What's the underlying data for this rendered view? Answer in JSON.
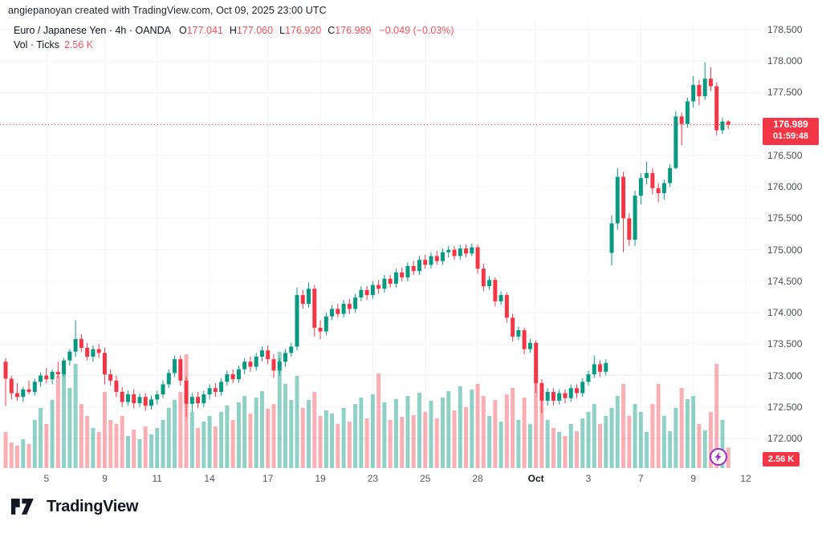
{
  "attribution": "angiepanoyan created with TradingView.com, Oct 09, 2025 23:00 UTC",
  "legend": {
    "symbol_line": "Euro / Japanese Yen · 4h · OANDA",
    "ohlc": [
      {
        "k": "O",
        "v": "177.041"
      },
      {
        "k": "H",
        "v": "177.060"
      },
      {
        "k": "L",
        "v": "176.920"
      },
      {
        "k": "C",
        "v": "176.989"
      }
    ],
    "change": "−0.049 (−0.03%)",
    "vol_label": "Vol · Ticks",
    "vol_value": "2.56 K"
  },
  "badges": {
    "price": "176.989",
    "countdown": "01:59:48",
    "volume": "2.56 K"
  },
  "footer": {
    "brand": "TradingView"
  },
  "icons": {
    "flash": "lightning-icon",
    "logo": "tradingview-logo-icon"
  },
  "colors": {
    "up": "#089981",
    "down": "#f23645",
    "text_down": "#f7525f",
    "volume_up": "rgba(8,153,129,0.45)",
    "volume_down": "rgba(242,54,69,0.40)",
    "badge_bg": "#f23645",
    "grid": "#f1f3f6",
    "axis_text": "#4a4e59",
    "dark_text": "#131722",
    "flash_purple": "#a02cc8",
    "price_line": "#f23645"
  },
  "chart_data": {
    "type": "candlestick",
    "title": "Euro / Japanese Yen",
    "interval": "4h",
    "exchange": "OANDA",
    "volume_indicator": "Vol · Ticks",
    "last": {
      "o": 177.041,
      "h": 177.06,
      "l": 176.92,
      "c": 176.989,
      "change": -0.049,
      "change_pct": -0.03,
      "volume_k": 2.56,
      "countdown": "01:59:48"
    },
    "current_price": 176.989,
    "price_axis_range": [
      172.0,
      178.5
    ],
    "price_tick_step": 0.5,
    "hidden_price_label": 177.0,
    "grid": true,
    "volume_unit": "K",
    "time_ticks": [
      {
        "text": "5",
        "index": 7
      },
      {
        "text": "9",
        "index": 17
      },
      {
        "text": "11",
        "index": 26
      },
      {
        "text": "14",
        "index": 35
      },
      {
        "text": "17",
        "index": 45
      },
      {
        "text": "19",
        "index": 54
      },
      {
        "text": "23",
        "index": 63
      },
      {
        "text": "25",
        "index": 72
      },
      {
        "text": "28",
        "index": 81
      },
      {
        "text": "Oct",
        "index": 91,
        "bold": true
      },
      {
        "text": "3",
        "index": 100
      },
      {
        "text": "7",
        "index": 109
      },
      {
        "text": "9",
        "index": 118
      },
      {
        "text": "12",
        "index": 127
      }
    ],
    "candles": [
      [
        173.22,
        173.28,
        172.52,
        172.95,
        4.5
      ],
      [
        172.95,
        173.0,
        172.62,
        172.72,
        3.2
      ],
      [
        172.72,
        172.88,
        172.6,
        172.66,
        2.8
      ],
      [
        172.66,
        172.82,
        172.58,
        172.78,
        3.6
      ],
      [
        172.78,
        172.92,
        172.7,
        172.74,
        3.0
      ],
      [
        172.74,
        172.95,
        172.68,
        172.9,
        6.0
      ],
      [
        172.9,
        173.05,
        172.82,
        173.0,
        7.5
      ],
      [
        173.0,
        173.12,
        172.88,
        172.94,
        5.5
      ],
      [
        172.94,
        173.1,
        172.86,
        173.06,
        8.5
      ],
      [
        173.06,
        173.22,
        172.96,
        173.02,
        11.5
      ],
      [
        173.02,
        173.28,
        172.98,
        173.24,
        12.0
      ],
      [
        173.24,
        173.42,
        173.16,
        173.38,
        10.0
      ],
      [
        173.38,
        173.88,
        173.3,
        173.58,
        13.0
      ],
      [
        173.58,
        173.66,
        173.38,
        173.44,
        8.0
      ],
      [
        173.44,
        173.52,
        173.24,
        173.3,
        6.5
      ],
      [
        173.3,
        173.48,
        173.22,
        173.42,
        5.0
      ],
      [
        173.42,
        173.5,
        173.28,
        173.36,
        4.5
      ],
      [
        173.36,
        173.44,
        172.86,
        173.02,
        9.5
      ],
      [
        173.02,
        173.1,
        172.84,
        172.92,
        6.0
      ],
      [
        172.92,
        173.0,
        172.66,
        172.74,
        5.5
      ],
      [
        172.74,
        172.82,
        172.5,
        172.58,
        6.5
      ],
      [
        172.58,
        172.76,
        172.52,
        172.7,
        4.0
      ],
      [
        172.7,
        172.78,
        172.48,
        172.56,
        4.8
      ],
      [
        172.56,
        172.72,
        172.5,
        172.66,
        3.6
      ],
      [
        172.66,
        172.72,
        172.44,
        172.52,
        5.2
      ],
      [
        172.52,
        172.68,
        172.46,
        172.62,
        4.2
      ],
      [
        172.62,
        172.76,
        172.54,
        172.7,
        5.0
      ],
      [
        172.7,
        172.92,
        172.64,
        172.86,
        6.0
      ],
      [
        172.86,
        173.1,
        172.8,
        173.04,
        7.5
      ],
      [
        173.04,
        173.32,
        172.98,
        173.26,
        8.5
      ],
      [
        173.26,
        173.32,
        172.84,
        172.92,
        9.5
      ],
      [
        172.92,
        172.98,
        172.34,
        172.55,
        14.2
      ],
      [
        172.55,
        172.72,
        172.42,
        172.66,
        7.0
      ],
      [
        172.66,
        172.74,
        172.48,
        172.56,
        5.0
      ],
      [
        172.56,
        172.76,
        172.5,
        172.7,
        5.8
      ],
      [
        172.7,
        172.86,
        172.62,
        172.8,
        6.5
      ],
      [
        172.8,
        172.88,
        172.66,
        172.74,
        5.2
      ],
      [
        172.74,
        172.96,
        172.68,
        172.9,
        7.0
      ],
      [
        172.9,
        173.08,
        172.84,
        173.02,
        7.8
      ],
      [
        173.02,
        173.1,
        172.88,
        172.94,
        6.0
      ],
      [
        172.94,
        173.16,
        172.88,
        173.1,
        8.2
      ],
      [
        173.1,
        173.28,
        173.02,
        173.22,
        9.0
      ],
      [
        173.22,
        173.3,
        173.06,
        173.14,
        6.8
      ],
      [
        173.14,
        173.36,
        173.08,
        173.3,
        8.8
      ],
      [
        173.3,
        173.46,
        173.22,
        173.4,
        9.6
      ],
      [
        173.4,
        173.48,
        173.18,
        173.26,
        7.4
      ],
      [
        173.26,
        173.34,
        172.96,
        173.08,
        8.0
      ],
      [
        173.08,
        173.28,
        173.0,
        173.22,
        14.5
      ],
      [
        173.22,
        173.42,
        173.14,
        173.36,
        10.5
      ],
      [
        173.36,
        173.52,
        173.3,
        173.46,
        8.5
      ],
      [
        173.46,
        174.4,
        173.4,
        174.28,
        11.5
      ],
      [
        174.28,
        174.36,
        174.06,
        174.14,
        7.5
      ],
      [
        174.14,
        174.48,
        174.08,
        174.38,
        8.5
      ],
      [
        174.38,
        174.44,
        173.62,
        173.76,
        9.5
      ],
      [
        173.76,
        173.88,
        173.58,
        173.7,
        6.5
      ],
      [
        173.7,
        174.0,
        173.64,
        173.94,
        7.2
      ],
      [
        173.94,
        174.12,
        173.88,
        174.06,
        6.8
      ],
      [
        174.06,
        174.14,
        173.92,
        173.98,
        5.5
      ],
      [
        173.98,
        174.2,
        173.92,
        174.14,
        7.5
      ],
      [
        174.14,
        174.22,
        173.98,
        174.06,
        5.8
      ],
      [
        174.06,
        174.3,
        174.0,
        174.24,
        8.0
      ],
      [
        174.24,
        174.42,
        174.18,
        174.36,
        8.8
      ],
      [
        174.36,
        174.42,
        174.2,
        174.28,
        6.2
      ],
      [
        174.28,
        174.5,
        174.22,
        174.44,
        9.2
      ],
      [
        174.44,
        174.52,
        174.3,
        174.38,
        11.8
      ],
      [
        174.38,
        174.6,
        174.32,
        174.54,
        8.2
      ],
      [
        174.54,
        174.6,
        174.4,
        174.46,
        6.0
      ],
      [
        174.46,
        174.7,
        174.4,
        174.64,
        8.6
      ],
      [
        174.64,
        174.72,
        174.5,
        174.56,
        6.4
      ],
      [
        174.56,
        174.8,
        174.5,
        174.74,
        9.0
      ],
      [
        174.74,
        174.82,
        174.6,
        174.66,
        6.6
      ],
      [
        174.66,
        174.9,
        174.6,
        174.84,
        9.4
      ],
      [
        174.84,
        174.92,
        174.7,
        174.76,
        7.0
      ],
      [
        174.76,
        174.96,
        174.7,
        174.9,
        8.4
      ],
      [
        174.9,
        174.98,
        174.76,
        174.82,
        6.2
      ],
      [
        174.82,
        175.02,
        174.76,
        174.96,
        8.8
      ],
      [
        174.96,
        175.06,
        174.88,
        175.0,
        9.6
      ],
      [
        175.0,
        175.06,
        174.84,
        174.9,
        7.2
      ],
      [
        174.9,
        175.08,
        174.84,
        175.02,
        10.2
      ],
      [
        175.02,
        175.08,
        174.88,
        174.94,
        7.6
      ],
      [
        174.94,
        175.1,
        174.9,
        175.04,
        9.8
      ],
      [
        175.04,
        175.08,
        174.62,
        174.7,
        10.5
      ],
      [
        174.7,
        174.78,
        174.34,
        174.42,
        9.0
      ],
      [
        174.42,
        174.58,
        174.36,
        174.52,
        6.5
      ],
      [
        174.52,
        174.56,
        174.1,
        174.18,
        8.5
      ],
      [
        174.18,
        174.34,
        174.12,
        174.28,
        5.8
      ],
      [
        174.28,
        174.32,
        173.84,
        173.92,
        9.2
      ],
      [
        173.92,
        173.98,
        173.54,
        173.62,
        10.0
      ],
      [
        173.62,
        173.78,
        173.56,
        173.72,
        6.0
      ],
      [
        173.72,
        173.76,
        173.34,
        173.42,
        8.8
      ],
      [
        173.42,
        173.58,
        173.36,
        173.52,
        5.5
      ],
      [
        173.52,
        173.56,
        172.72,
        172.88,
        12.5
      ],
      [
        172.88,
        172.94,
        172.4,
        172.6,
        9.5
      ],
      [
        172.6,
        172.8,
        172.52,
        172.74,
        6.0
      ],
      [
        172.74,
        172.8,
        172.52,
        172.6,
        5.0
      ],
      [
        172.6,
        172.78,
        172.54,
        172.72,
        4.5
      ],
      [
        172.72,
        172.78,
        172.56,
        172.64,
        4.0
      ],
      [
        172.64,
        172.86,
        172.58,
        172.8,
        5.5
      ],
      [
        172.8,
        172.86,
        172.64,
        172.72,
        4.6
      ],
      [
        172.72,
        172.96,
        172.66,
        172.9,
        6.2
      ],
      [
        172.9,
        173.08,
        172.84,
        173.02,
        7.0
      ],
      [
        173.02,
        173.32,
        172.96,
        173.18,
        8.0
      ],
      [
        173.18,
        173.24,
        172.98,
        173.06,
        5.5
      ],
      [
        173.06,
        173.26,
        173.0,
        173.2,
        6.5
      ],
      [
        174.95,
        175.55,
        174.75,
        175.42,
        7.5
      ],
      [
        175.42,
        176.3,
        175.32,
        176.16,
        9.0
      ],
      [
        176.16,
        176.24,
        174.96,
        175.5,
        10.5
      ],
      [
        175.5,
        175.58,
        175.06,
        175.16,
        6.5
      ],
      [
        175.16,
        175.94,
        175.06,
        175.86,
        8.0
      ],
      [
        175.86,
        176.22,
        175.72,
        176.14,
        7.0
      ],
      [
        176.14,
        176.4,
        176.04,
        176.22,
        4.5
      ],
      [
        176.22,
        176.3,
        175.88,
        175.98,
        8.0
      ],
      [
        175.98,
        176.06,
        175.76,
        175.9,
        10.5
      ],
      [
        175.9,
        176.12,
        175.8,
        176.06,
        6.5
      ],
      [
        176.06,
        176.36,
        176.0,
        176.3,
        4.6
      ],
      [
        176.3,
        177.2,
        176.28,
        177.12,
        7.5
      ],
      [
        177.12,
        177.18,
        176.66,
        177.0,
        10.0
      ],
      [
        177.0,
        177.42,
        176.94,
        177.36,
        8.6
      ],
      [
        177.36,
        177.76,
        177.26,
        177.62,
        9.0
      ],
      [
        177.62,
        177.7,
        177.3,
        177.44,
        5.5
      ],
      [
        177.44,
        177.98,
        177.38,
        177.72,
        4.7
      ],
      [
        177.72,
        177.9,
        177.52,
        177.6,
        7.0
      ],
      [
        177.6,
        177.66,
        176.82,
        176.9,
        13.0
      ],
      [
        176.9,
        177.1,
        176.84,
        177.04,
        6.0
      ],
      [
        177.041,
        177.06,
        176.92,
        176.989,
        2.56
      ]
    ]
  }
}
